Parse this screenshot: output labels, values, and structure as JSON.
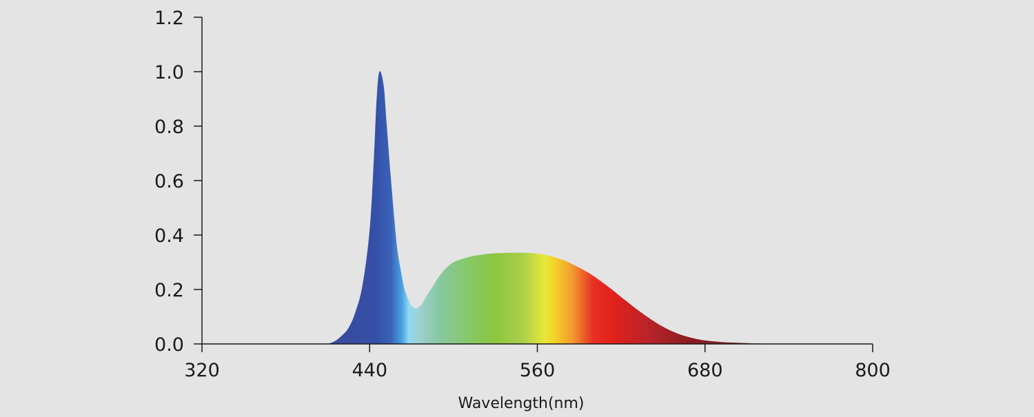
{
  "chart_data": {
    "type": "area",
    "title": "",
    "xlabel": "Wavelength(nm)",
    "ylabel": "",
    "xlim": [
      320,
      800
    ],
    "ylim": [
      0,
      1.2
    ],
    "x_ticks": [
      "320",
      "440",
      "560",
      "680",
      "800"
    ],
    "y_ticks": [
      "0.0",
      "0.2",
      "0.4",
      "0.6",
      "0.8",
      "1.0",
      "1.2"
    ],
    "grid": false,
    "legend": "none",
    "series": [
      {
        "x": [
          410,
          415,
          420,
          425,
          430,
          435,
          440,
          443,
          445,
          447,
          450,
          452,
          455,
          458,
          460,
          463,
          465,
          468,
          470,
          473,
          475,
          478,
          480,
          485,
          490,
          495,
          500,
          505,
          510,
          515,
          520,
          525,
          530,
          535,
          540,
          545,
          550,
          555,
          560,
          565,
          570,
          575,
          580,
          585,
          590,
          595,
          600,
          605,
          610,
          615,
          620,
          625,
          630,
          635,
          640,
          645,
          650,
          655,
          660,
          665,
          670,
          675,
          680,
          685,
          690,
          695,
          700,
          705,
          710,
          715,
          720,
          725,
          730,
          735
        ],
        "values": [
          0.0,
          0.01,
          0.03,
          0.06,
          0.12,
          0.22,
          0.42,
          0.68,
          0.9,
          1.0,
          0.95,
          0.82,
          0.62,
          0.44,
          0.34,
          0.25,
          0.2,
          0.16,
          0.14,
          0.13,
          0.135,
          0.15,
          0.17,
          0.21,
          0.25,
          0.28,
          0.3,
          0.31,
          0.318,
          0.324,
          0.328,
          0.331,
          0.333,
          0.334,
          0.335,
          0.335,
          0.335,
          0.334,
          0.332,
          0.328,
          0.322,
          0.314,
          0.305,
          0.293,
          0.28,
          0.266,
          0.25,
          0.232,
          0.213,
          0.193,
          0.172,
          0.152,
          0.132,
          0.113,
          0.095,
          0.078,
          0.063,
          0.05,
          0.039,
          0.03,
          0.023,
          0.017,
          0.013,
          0.01,
          0.008,
          0.006,
          0.005,
          0.004,
          0.003,
          0.002,
          0.0015,
          0.001,
          0.0005,
          0.0
        ]
      }
    ],
    "gradient": [
      {
        "x": 410,
        "color": "#3a4a9a"
      },
      {
        "x": 445,
        "color": "#3550a8"
      },
      {
        "x": 455,
        "color": "#3a62b8"
      },
      {
        "x": 463,
        "color": "#4aa0e0"
      },
      {
        "x": 468,
        "color": "#8ed8f2"
      },
      {
        "x": 475,
        "color": "#9ed0d0"
      },
      {
        "x": 490,
        "color": "#86c8a0"
      },
      {
        "x": 510,
        "color": "#86c86a"
      },
      {
        "x": 530,
        "color": "#8cc640"
      },
      {
        "x": 550,
        "color": "#acd04a"
      },
      {
        "x": 565,
        "color": "#e6e83a"
      },
      {
        "x": 572,
        "color": "#f4d428"
      },
      {
        "x": 585,
        "color": "#f29a2e"
      },
      {
        "x": 600,
        "color": "#e83024"
      },
      {
        "x": 615,
        "color": "#e0201c"
      },
      {
        "x": 640,
        "color": "#b8242a"
      },
      {
        "x": 670,
        "color": "#8a1c20"
      },
      {
        "x": 700,
        "color": "#7a2a28"
      },
      {
        "x": 735,
        "color": "#6e3a36"
      }
    ],
    "colors": {
      "axis": "#1a1a1a",
      "background": "#e4e4e4"
    }
  }
}
